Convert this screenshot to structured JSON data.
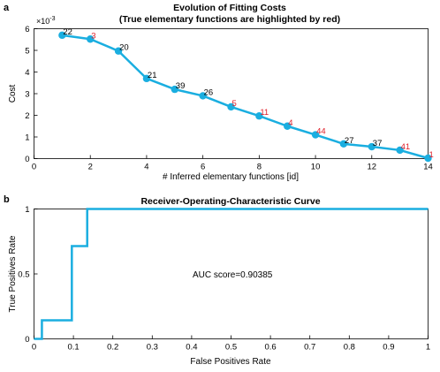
{
  "panel_labels": [
    "a",
    "b"
  ],
  "colors": {
    "series": "#1aaee0",
    "highlight": "#e0202a",
    "text": "#000000",
    "axis": "#000000"
  },
  "chart_data": [
    {
      "type": "line",
      "title": "Evolution of Fitting Costs",
      "subtitle": "(True elementary functions are highlighted by red)",
      "xlabel": "# Inferred elementary functions [id]",
      "ylabel": "Cost",
      "y_exponent_label": "×10",
      "y_exponent": "-3",
      "xlim": [
        0,
        14
      ],
      "ylim": [
        0,
        6
      ],
      "xticks": [
        0,
        2,
        4,
        6,
        8,
        10,
        12,
        14
      ],
      "yticks": [
        0,
        1,
        2,
        3,
        4,
        5,
        6
      ],
      "grid": false,
      "x": [
        1,
        2,
        3,
        4,
        5,
        6,
        7,
        8,
        9,
        10,
        11,
        12,
        13,
        14
      ],
      "y": [
        5.7,
        5.52,
        4.97,
        3.7,
        3.2,
        2.9,
        2.39,
        1.97,
        1.5,
        1.1,
        0.68,
        0.55,
        0.39,
        0.02
      ],
      "point_labels": [
        "22",
        "3",
        "20",
        "21",
        "39",
        "26",
        "5",
        "11",
        "4",
        "44",
        "27",
        "37",
        "41",
        "1"
      ],
      "highlighted": [
        false,
        true,
        false,
        false,
        false,
        false,
        true,
        true,
        true,
        true,
        false,
        false,
        true,
        true
      ]
    },
    {
      "type": "line",
      "title": "Receiver-Operating-Characteristic Curve",
      "xlabel": "False Positives Rate",
      "ylabel": "True Positives Rate",
      "xlim": [
        0,
        1
      ],
      "ylim": [
        0,
        1
      ],
      "xticks": [
        0,
        0.1,
        0.2,
        0.3,
        0.4,
        0.5,
        0.6,
        0.7,
        0.8,
        0.9,
        1
      ],
      "yticks": [
        0,
        0.5,
        1
      ],
      "grid": false,
      "x": [
        0,
        0.02,
        0.02,
        0.096,
        0.096,
        0.135,
        0.135,
        1
      ],
      "y": [
        0,
        0,
        0.143,
        0.143,
        0.714,
        0.714,
        1,
        1
      ],
      "annotation": "AUC score=0.90385"
    }
  ]
}
